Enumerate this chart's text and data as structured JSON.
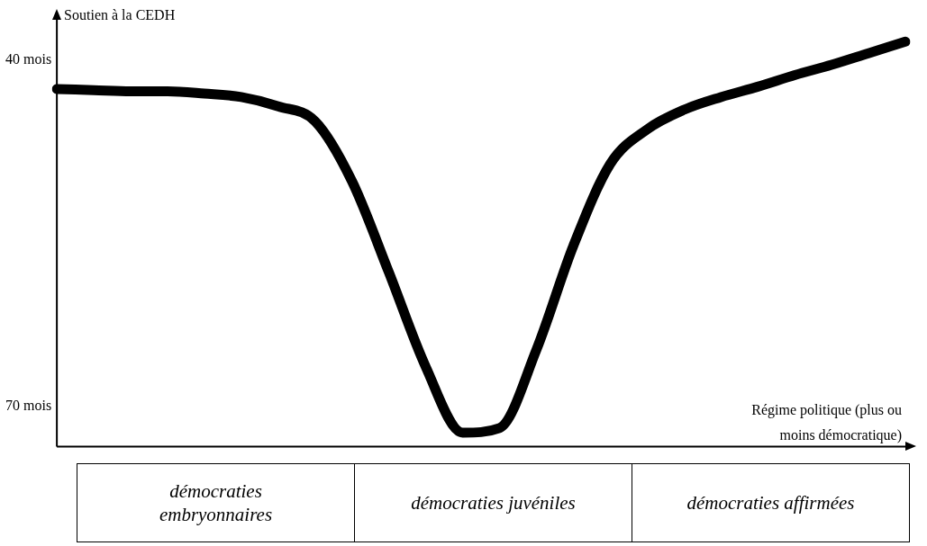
{
  "chart_data": {
    "type": "line",
    "ylabel": "Soutien à la CEDH",
    "xlabel": "Régime politique (plus ou moins démocratique)",
    "categories": [
      null,
      null,
      null,
      null,
      null,
      null,
      null,
      null,
      null,
      null,
      null,
      null,
      null,
      null,
      null,
      null,
      null,
      null,
      null,
      null,
      null,
      null,
      null,
      null
    ],
    "series": [
      {
        "color": "#000000",
        "values": [
          42.5,
          42.6,
          42.7,
          42.7,
          42.9,
          43.2,
          44.0,
          45.3,
          50.5,
          58.4,
          66.6,
          72.3,
          71.9,
          65.1,
          56.1,
          49.0,
          46.0,
          44.3,
          43.2,
          42.3,
          41.3,
          40.4,
          39.4,
          38.4
        ]
      }
    ],
    "ylim": [
      73.5,
      36.5
    ],
    "yticks": [
      {
        "value": 40,
        "label": "40 mois"
      },
      {
        "value": 70,
        "label": "70 mois"
      }
    ],
    "tick_labels": "y",
    "grid": false,
    "legend": false,
    "marker": "none",
    "line_style": "solid",
    "annotations": [
      "démocraties embryonnaires",
      "démocraties juvéniles",
      "démocraties affirmées"
    ]
  }
}
